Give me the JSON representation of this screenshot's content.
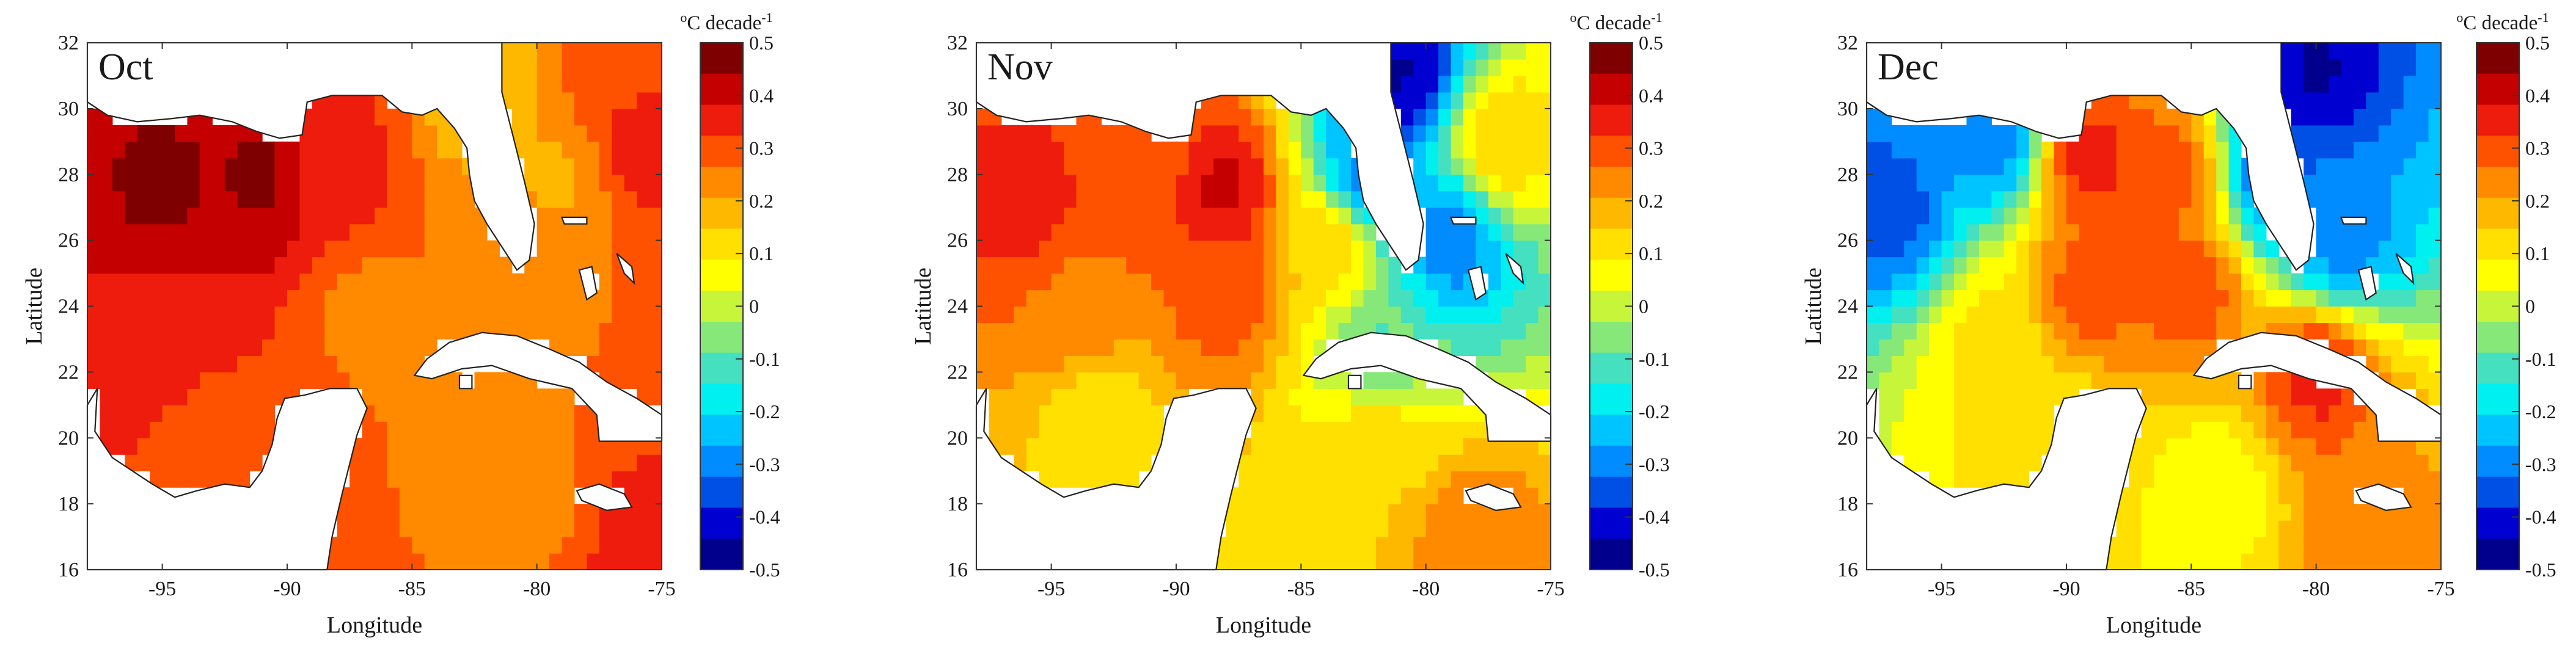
{
  "figure": {
    "colorbar_ticks": [
      "0.5",
      "0.4",
      "0.3",
      "0.2",
      "0.1",
      "0",
      "-0.1",
      "-0.2",
      "-0.3",
      "-0.4",
      "-0.5"
    ],
    "colorbar_colors": [
      "#7f0000",
      "#c40000",
      "#ee1c0c",
      "#ff5200",
      "#ff8a00",
      "#ffb800",
      "#ffe000",
      "#ffff00",
      "#c6f53a",
      "#86e878",
      "#44e0c0",
      "#00f0f0",
      "#00c4ff",
      "#008cff",
      "#0050e6",
      "#0000d0",
      "#00008c"
    ]
  },
  "chart_data": [
    {
      "type": "heatmap",
      "panel_label": "Oct",
      "xlabel": "Longitude",
      "ylabel": "Latitude",
      "xlim": [
        -98,
        -75
      ],
      "ylim": [
        16,
        32
      ],
      "xticks": [
        "-95",
        "-90",
        "-85",
        "-80",
        "-75"
      ],
      "xtick_values": [
        -95,
        -90,
        -85,
        -80,
        -75
      ],
      "yticks": [
        "16",
        "18",
        "20",
        "22",
        "24",
        "26",
        "28",
        "30",
        "32"
      ],
      "ytick_values": [
        16,
        18,
        20,
        22,
        24,
        26,
        28,
        30,
        32
      ],
      "colorbar": {
        "label_base": "oC decade",
        "label_exp": "-1",
        "range": [
          -0.5,
          0.5
        ],
        "step": 0.1
      },
      "trend_hotspots": [
        {
          "lon": -95,
          "lat": 27.5,
          "value": 0.45
        },
        {
          "lon": -91,
          "lat": 27.8,
          "value": 0.45
        },
        {
          "lon": -88,
          "lat": 28,
          "value": 0.35
        },
        {
          "lon": -95,
          "lat": 23,
          "value": 0.35
        },
        {
          "lon": -93,
          "lat": 20,
          "value": 0.3
        },
        {
          "lon": -87,
          "lat": 24,
          "value": 0.25
        },
        {
          "lon": -83,
          "lat": 23.5,
          "value": 0.25
        },
        {
          "lon": -82,
          "lat": 20,
          "value": 0.25
        },
        {
          "lon": -80,
          "lat": 18,
          "value": 0.25
        },
        {
          "lon": -76,
          "lat": 16.8,
          "value": 0.35
        },
        {
          "lon": -79,
          "lat": 28,
          "value": 0.2
        },
        {
          "lon": -76,
          "lat": 29,
          "value": 0.35
        },
        {
          "lon": -77,
          "lat": 31.2,
          "value": 0.3
        },
        {
          "lon": -82,
          "lat": 30.5,
          "value": 0.15
        }
      ]
    },
    {
      "type": "heatmap",
      "panel_label": "Nov",
      "xlabel": "Longitude",
      "ylabel": "Latitude",
      "xlim": [
        -98,
        -75
      ],
      "ylim": [
        16,
        32
      ],
      "xticks": [
        "-95",
        "-90",
        "-85",
        "-80",
        "-75"
      ],
      "xtick_values": [
        -95,
        -90,
        -85,
        -80,
        -75
      ],
      "yticks": [
        "16",
        "18",
        "20",
        "22",
        "24",
        "26",
        "28",
        "30",
        "32"
      ],
      "ytick_values": [
        16,
        18,
        20,
        22,
        24,
        26,
        28,
        30,
        32
      ],
      "colorbar": {
        "label_base": "oC decade",
        "label_exp": "-1",
        "range": [
          -0.5,
          0.5
        ],
        "step": 0.1
      },
      "trend_hotspots": [
        {
          "lon": -96,
          "lat": 27,
          "value": 0.35
        },
        {
          "lon": -88,
          "lat": 27.5,
          "value": 0.4
        },
        {
          "lon": -91,
          "lat": 28.5,
          "value": 0.3
        },
        {
          "lon": -94,
          "lat": 24,
          "value": 0.25
        },
        {
          "lon": -88,
          "lat": 24.5,
          "value": 0.3
        },
        {
          "lon": -93,
          "lat": 20.5,
          "value": 0.1
        },
        {
          "lon": -82,
          "lat": 20,
          "value": 0.15
        },
        {
          "lon": -78,
          "lat": 17,
          "value": 0.25
        },
        {
          "lon": -84,
          "lat": 26,
          "value": 0.15
        },
        {
          "lon": -82.5,
          "lat": 28,
          "value": -0.3
        },
        {
          "lon": -81,
          "lat": 31,
          "value": -0.45
        },
        {
          "lon": -79,
          "lat": 26,
          "value": -0.3
        },
        {
          "lon": -82,
          "lat": 22.5,
          "value": -0.1
        },
        {
          "lon": -77,
          "lat": 29,
          "value": 0.15
        }
      ]
    },
    {
      "type": "heatmap",
      "panel_label": "Dec",
      "xlabel": "Longitude",
      "ylabel": "Latitude",
      "xlim": [
        -98,
        -75
      ],
      "ylim": [
        16,
        32
      ],
      "xticks": [
        "-95",
        "-90",
        "-85",
        "-80",
        "-75"
      ],
      "xtick_values": [
        -95,
        -90,
        -85,
        -80,
        -75
      ],
      "yticks": [
        "16",
        "18",
        "20",
        "22",
        "24",
        "26",
        "28",
        "30",
        "32"
      ],
      "ytick_values": [
        16,
        18,
        20,
        22,
        24,
        26,
        28,
        30,
        32
      ],
      "colorbar": {
        "label_base": "oC decade",
        "label_exp": "-1",
        "range": [
          -0.5,
          0.5
        ],
        "step": 0.1
      },
      "trend_hotspots": [
        {
          "lon": -89,
          "lat": 28.5,
          "value": 0.35
        },
        {
          "lon": -86,
          "lat": 28,
          "value": 0.3
        },
        {
          "lon": -89,
          "lat": 24.5,
          "value": 0.3
        },
        {
          "lon": -85,
          "lat": 24.5,
          "value": 0.3
        },
        {
          "lon": -93,
          "lat": 23,
          "value": 0.1
        },
        {
          "lon": -90,
          "lat": 20,
          "value": 0.1
        },
        {
          "lon": -84,
          "lat": 18.5,
          "value": 0.05
        },
        {
          "lon": -78,
          "lat": 17,
          "value": 0.25
        },
        {
          "lon": -81.5,
          "lat": 28,
          "value": -0.35
        },
        {
          "lon": -97,
          "lat": 27,
          "value": -0.35
        },
        {
          "lon": -93,
          "lat": 29,
          "value": -0.3
        },
        {
          "lon": -80,
          "lat": 31,
          "value": -0.45
        },
        {
          "lon": -79,
          "lat": 26,
          "value": -0.3
        },
        {
          "lon": -80,
          "lat": 22,
          "value": 0.35
        }
      ]
    }
  ]
}
